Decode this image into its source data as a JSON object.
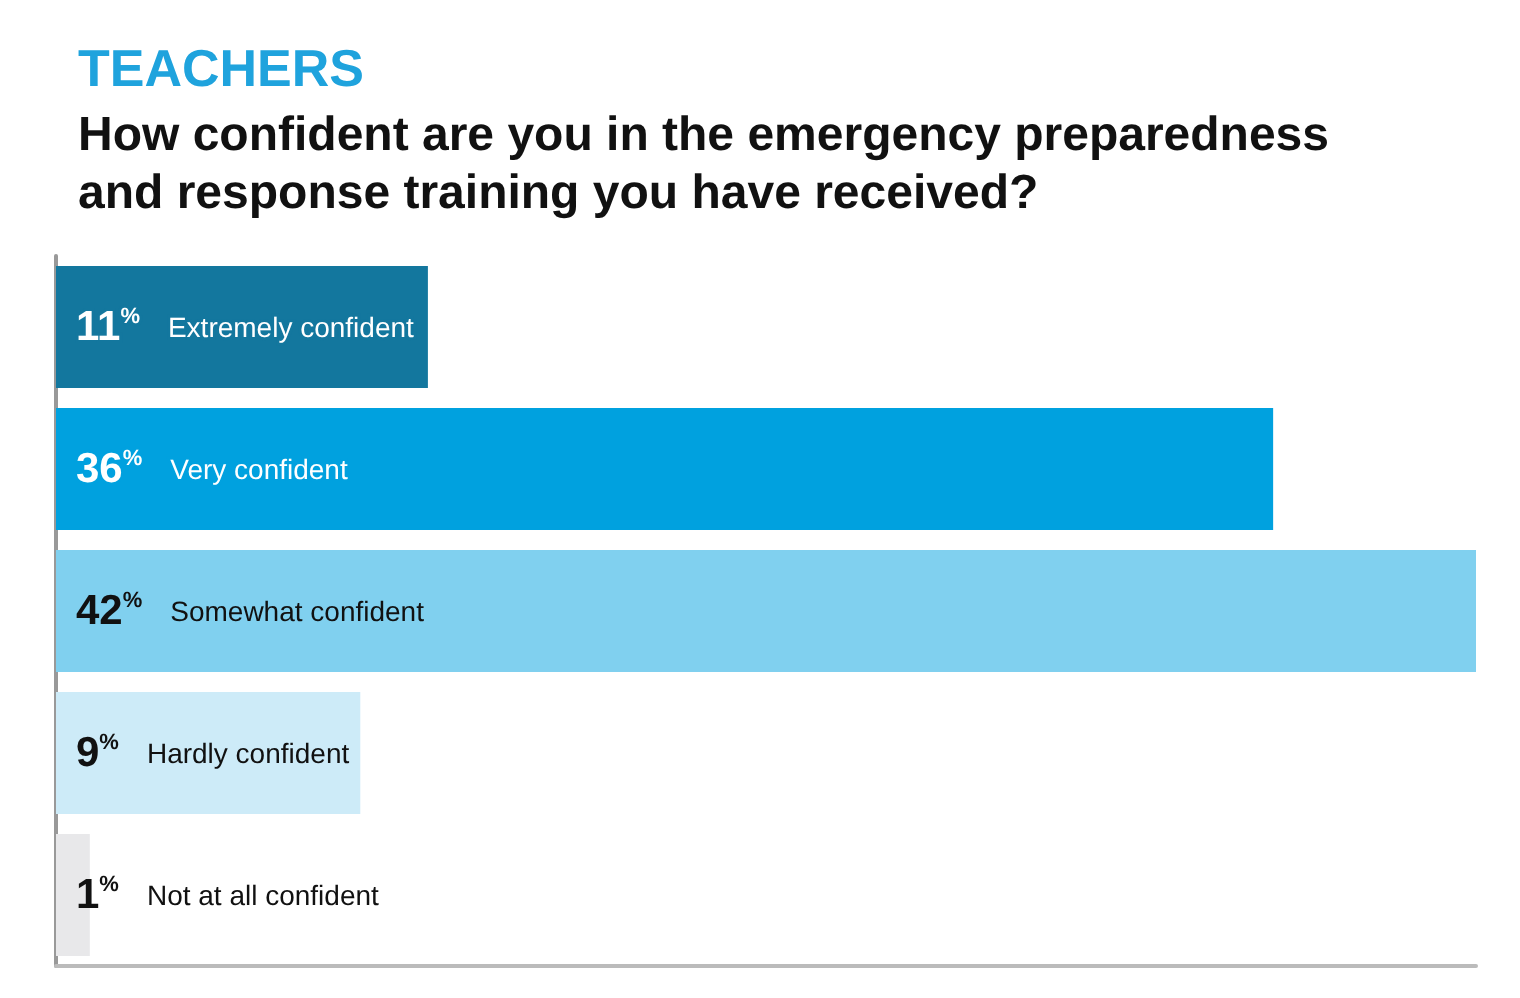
{
  "chart_data": {
    "type": "bar",
    "orientation": "horizontal",
    "title": "TEACHERS",
    "subtitle": "How confident are you in the emergency preparedness and response training you have received?",
    "categories": [
      "Extremely confident",
      "Very confident",
      "Somewhat confident",
      "Hardly confident",
      "Not at all confident"
    ],
    "values": [
      11,
      36,
      42,
      9,
      1
    ],
    "colors": [
      "#13779e",
      "#00a1df",
      "#80d0ef",
      "#cdebf8",
      "#e8e8ea"
    ],
    "data_labels": true,
    "value_labels": [
      "11%",
      "36%",
      "42%",
      "9%",
      "1%"
    ],
    "grid": false
  }
}
